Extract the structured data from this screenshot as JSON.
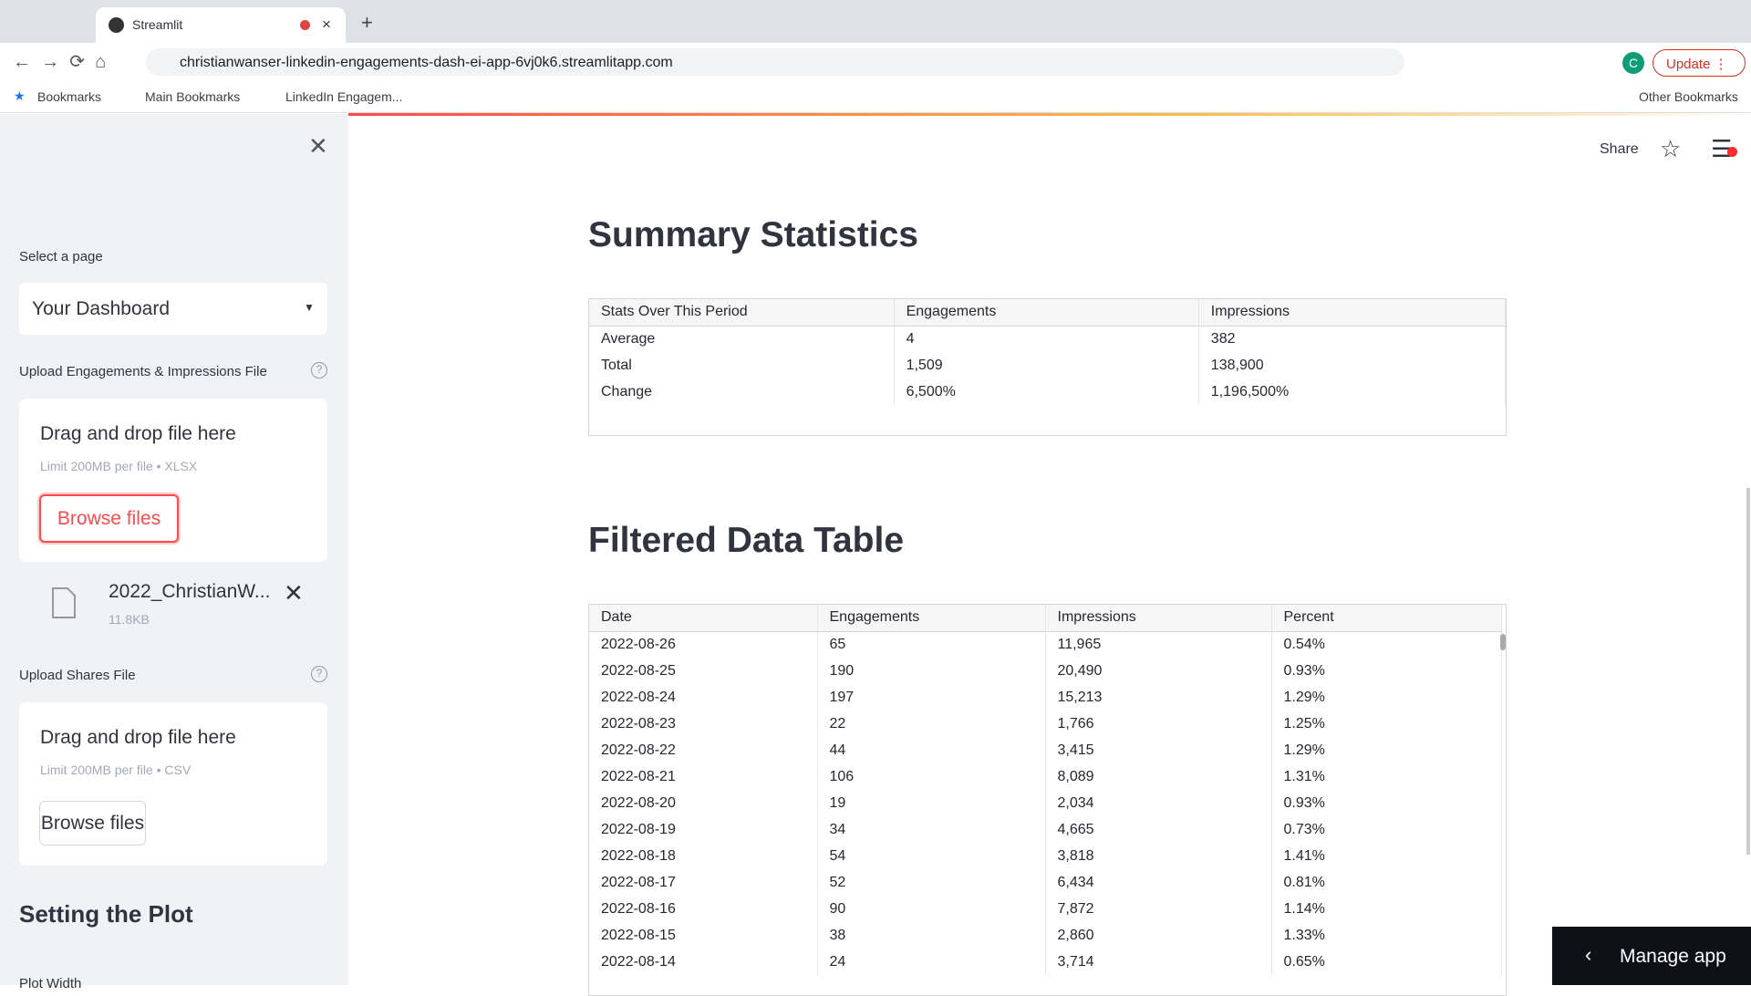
{
  "browser": {
    "tab_title": "Streamlit",
    "url": "christianwanser-linkedin-engagements-dash-ei-app-6vj0k6.streamlitapp.com",
    "update": "Update",
    "bookmarks": [
      "Bookmarks",
      "Main Bookmarks",
      "LinkedIn Engagem..."
    ],
    "other_bookmarks": "Other Bookmarks",
    "avatar": "C"
  },
  "sidebar": {
    "select_label": "Select a page",
    "select_value": "Your Dashboard",
    "upload_1": {
      "label": "Upload Engagements & Impressions File",
      "drop": "Drag and drop file here",
      "limit": "Limit 200MB per file • XLSX",
      "button": "Browse files",
      "file_name": "2022_ChristianW...",
      "file_size": "11.8KB"
    },
    "upload_2": {
      "label": "Upload Shares File",
      "drop": "Drag and drop file here",
      "limit": "Limit 200MB per file • CSV",
      "button": "Browse files"
    },
    "section": "Setting the Plot",
    "next_label": "Plot Width"
  },
  "header": {
    "share": "Share"
  },
  "summary": {
    "title": "Summary Statistics",
    "columns": [
      "Stats Over This Period",
      "Engagements",
      "Impressions"
    ],
    "rows": [
      [
        "Average",
        "4",
        "382"
      ],
      [
        "Total",
        "1,509",
        "138,900"
      ],
      [
        "Change",
        "6,500%",
        "1,196,500%"
      ]
    ]
  },
  "filtered": {
    "title": "Filtered Data Table",
    "columns": [
      "Date",
      "Engagements",
      "Impressions",
      "Percent"
    ],
    "rows": [
      [
        "2022-08-26",
        "65",
        "11,965",
        "0.54%"
      ],
      [
        "2022-08-25",
        "190",
        "20,490",
        "0.93%"
      ],
      [
        "2022-08-24",
        "197",
        "15,213",
        "1.29%"
      ],
      [
        "2022-08-23",
        "22",
        "1,766",
        "1.25%"
      ],
      [
        "2022-08-22",
        "44",
        "3,415",
        "1.29%"
      ],
      [
        "2022-08-21",
        "106",
        "8,089",
        "1.31%"
      ],
      [
        "2022-08-20",
        "19",
        "2,034",
        "0.93%"
      ],
      [
        "2022-08-19",
        "34",
        "4,665",
        "0.73%"
      ],
      [
        "2022-08-18",
        "54",
        "3,818",
        "1.41%"
      ],
      [
        "2022-08-17",
        "52",
        "6,434",
        "0.81%"
      ],
      [
        "2022-08-16",
        "90",
        "7,872",
        "1.14%"
      ],
      [
        "2022-08-15",
        "38",
        "2,860",
        "1.33%"
      ],
      [
        "2022-08-14",
        "24",
        "3,714",
        "0.65%"
      ]
    ]
  },
  "manage_app": "Manage app"
}
